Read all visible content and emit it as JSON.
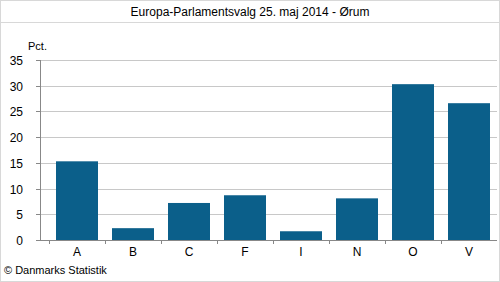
{
  "chart_data": {
    "type": "bar",
    "title": "Europa-Parlamentsvalg 25. maj 2014 - Ørum",
    "y_label": "Pct.",
    "source": "© Danmarks Statistik",
    "categories": [
      "A",
      "B",
      "C",
      "F",
      "I",
      "N",
      "O",
      "V"
    ],
    "values": [
      15.3,
      2.3,
      7.2,
      8.7,
      1.7,
      8.1,
      30.3,
      26.6
    ],
    "color": "#0b5f8a",
    "ylim": [
      0,
      35
    ],
    "yticks": [
      0,
      5,
      10,
      15,
      20,
      25,
      30,
      35
    ],
    "grid": true
  }
}
